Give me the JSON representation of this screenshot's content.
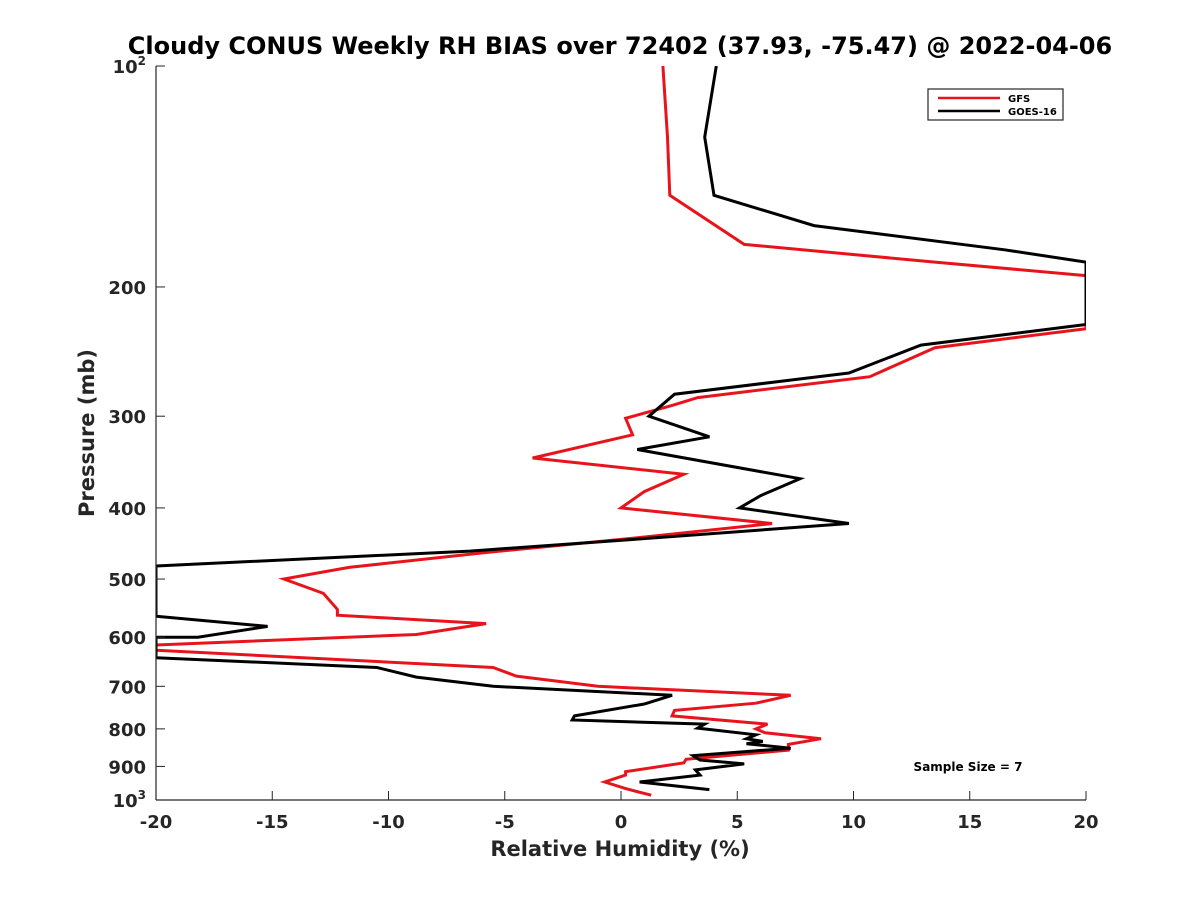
{
  "chart_data": {
    "type": "line",
    "title": "Cloudy CONUS Weekly RH BIAS over 72402 (37.93, -75.47) @ 2022-04-06",
    "xlabel": "Relative Humidity (%)",
    "ylabel": "Pressure (mb)",
    "xlim": [
      -20,
      20
    ],
    "ylim": [
      100,
      1000
    ],
    "yscale": "log",
    "y_reversed": true,
    "grid": false,
    "legend_position": "top-right",
    "x_ticks": [
      {
        "value": -20,
        "label": "-20"
      },
      {
        "value": -15,
        "label": "-15"
      },
      {
        "value": -10,
        "label": "-10"
      },
      {
        "value": -5,
        "label": "-5"
      },
      {
        "value": 0,
        "label": "0"
      },
      {
        "value": 5,
        "label": "5"
      },
      {
        "value": 10,
        "label": "10"
      },
      {
        "value": 15,
        "label": "15"
      },
      {
        "value": 20,
        "label": "20"
      }
    ],
    "y_ticks": [
      {
        "value": 100,
        "label": "10",
        "sup": "2"
      },
      {
        "value": 200,
        "label": "200",
        "sup": ""
      },
      {
        "value": 300,
        "label": "300",
        "sup": ""
      },
      {
        "value": 400,
        "label": "400",
        "sup": ""
      },
      {
        "value": 500,
        "label": "500",
        "sup": ""
      },
      {
        "value": 600,
        "label": "600",
        "sup": ""
      },
      {
        "value": 700,
        "label": "700",
        "sup": ""
      },
      {
        "value": 800,
        "label": "800",
        "sup": ""
      },
      {
        "value": 900,
        "label": "900",
        "sup": ""
      },
      {
        "value": 1000,
        "label": "10",
        "sup": "3"
      }
    ],
    "series": [
      {
        "name": "GFS",
        "color": "#e8141b",
        "points": [
          [
            1.8,
            100
          ],
          [
            2.0,
            125
          ],
          [
            2.1,
            150
          ],
          [
            5.3,
            175
          ],
          [
            13.5,
            185
          ],
          [
            20.0,
            193
          ],
          [
            20.0,
            228
          ],
          [
            13.5,
            242
          ],
          [
            10.7,
            265
          ],
          [
            3.3,
            283
          ],
          [
            2.2,
            290
          ],
          [
            0.2,
            302
          ],
          [
            0.5,
            318
          ],
          [
            -3.8,
            342
          ],
          [
            2.7,
            360
          ],
          [
            1.0,
            380
          ],
          [
            0.0,
            400
          ],
          [
            6.5,
            420
          ],
          [
            0.5,
            440
          ],
          [
            -5.8,
            460
          ],
          [
            -11.7,
            482
          ],
          [
            -14.5,
            500
          ],
          [
            -12.8,
            523
          ],
          [
            -12.2,
            550
          ],
          [
            -12.2,
            560
          ],
          [
            -5.8,
            575
          ],
          [
            -8.8,
            595
          ],
          [
            -20.0,
            615
          ],
          [
            -20.0,
            625
          ],
          [
            -5.5,
            660
          ],
          [
            -4.5,
            678
          ],
          [
            -1.0,
            700
          ],
          [
            7.3,
            720
          ],
          [
            5.8,
            738
          ],
          [
            2.3,
            755
          ],
          [
            2.2,
            768
          ],
          [
            6.3,
            788
          ],
          [
            5.8,
            800
          ],
          [
            6.2,
            810
          ],
          [
            8.6,
            825
          ],
          [
            7.2,
            840
          ],
          [
            7.2,
            855
          ],
          [
            2.8,
            880
          ],
          [
            2.7,
            890
          ],
          [
            0.2,
            915
          ],
          [
            0.2,
            925
          ],
          [
            -0.7,
            945
          ],
          [
            0.2,
            965
          ],
          [
            1.3,
            985
          ]
        ]
      },
      {
        "name": "GOES-16",
        "color": "#000000",
        "points": [
          [
            4.1,
            100
          ],
          [
            3.6,
            125
          ],
          [
            4.0,
            150
          ],
          [
            8.3,
            165
          ],
          [
            16.5,
            178
          ],
          [
            20.0,
            185
          ],
          [
            20.0,
            225
          ],
          [
            12.9,
            240
          ],
          [
            9.8,
            262
          ],
          [
            2.3,
            280
          ],
          [
            1.2,
            300
          ],
          [
            3.8,
            320
          ],
          [
            0.7,
            333
          ],
          [
            7.7,
            365
          ],
          [
            6.0,
            385
          ],
          [
            5.1,
            400
          ],
          [
            9.8,
            420
          ],
          [
            1.2,
            440
          ],
          [
            -6.5,
            458
          ],
          [
            -20.0,
            480
          ],
          [
            -20.0,
            562
          ],
          [
            -15.2,
            580
          ],
          [
            -18.2,
            600
          ],
          [
            -20.0,
            600
          ],
          [
            -20.0,
            640
          ],
          [
            -10.5,
            660
          ],
          [
            -8.8,
            680
          ],
          [
            -5.5,
            700
          ],
          [
            2.2,
            720
          ],
          [
            1.0,
            740
          ],
          [
            -2.0,
            768
          ],
          [
            -2.1,
            778
          ],
          [
            3.6,
            788
          ],
          [
            3.3,
            798
          ],
          [
            5.8,
            815
          ],
          [
            5.4,
            825
          ],
          [
            6.1,
            832
          ],
          [
            5.4,
            838
          ],
          [
            7.3,
            850
          ],
          [
            3.1,
            870
          ],
          [
            3.4,
            882
          ],
          [
            5.3,
            893
          ],
          [
            3.2,
            910
          ],
          [
            3.4,
            925
          ],
          [
            0.8,
            945
          ],
          [
            3.8,
            968
          ]
        ]
      }
    ],
    "annotation": "Sample Size = 7"
  }
}
